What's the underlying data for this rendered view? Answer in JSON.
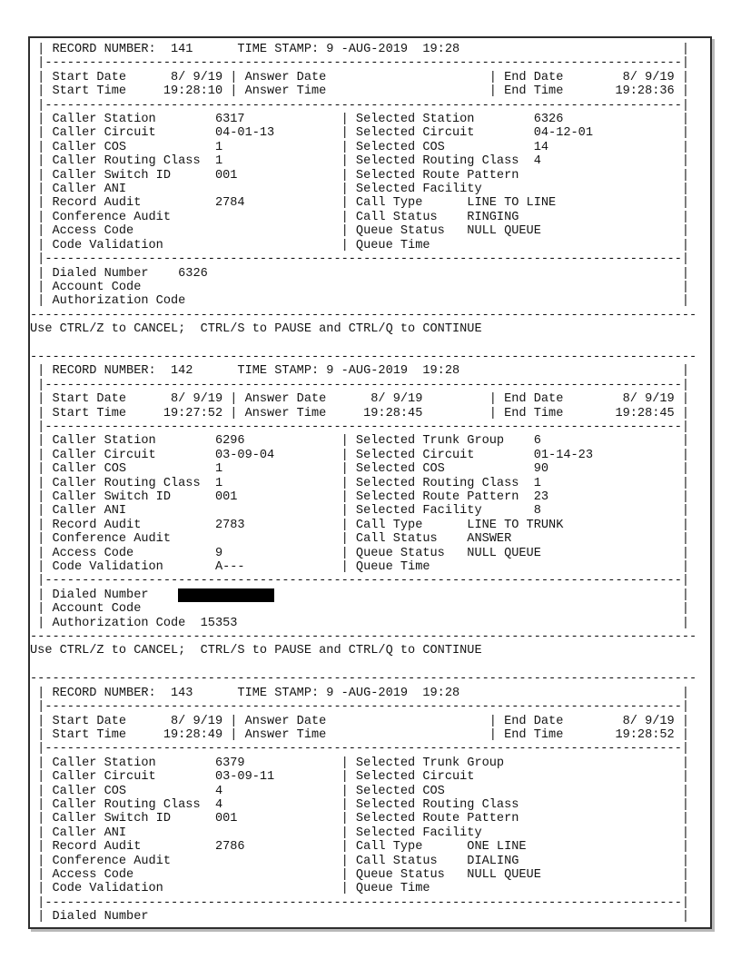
{
  "page": {
    "control_hint": "Use CTRL/Z to CANCEL;  CTRL/S to PAUSE and CTRL/Q to CONTINUE",
    "text_color": "#141414",
    "border_color": "#2e2e2e",
    "redaction_color": "#000000"
  },
  "labels": {
    "record_number": "RECORD NUMBER:",
    "time_stamp": "TIME STAMP:",
    "start_date": "Start Date",
    "start_time": "Start Time",
    "answer_date": "Answer Date",
    "answer_time": "Answer Time",
    "end_date": "End Date",
    "end_time": "End Time",
    "caller_station": "Caller Station",
    "caller_circuit": "Caller Circuit",
    "caller_cos": "Caller COS",
    "caller_routing_class": "Caller Routing Class",
    "caller_switch_id": "Caller Switch ID",
    "caller_ani": "Caller ANI",
    "record_audit": "Record Audit",
    "conference_audit": "Conference Audit",
    "access_code": "Access Code",
    "code_validation": "Code Validation",
    "selected_circuit": "Selected Circuit",
    "selected_cos": "Selected COS",
    "selected_routing_class": "Selected Routing Class",
    "selected_route_pattern": "Selected Route Pattern",
    "selected_facility": "Selected Facility",
    "call_type": "Call Type",
    "call_status": "Call Status",
    "queue_status": "Queue Status",
    "queue_time": "Queue Time",
    "dialed_number": "Dialed Number",
    "account_code": "Account Code",
    "authorization_code": "Authorization Code"
  },
  "records": [
    {
      "record_number": "141",
      "time_stamp": "9 -AUG-2019  19:28",
      "start_date": "8/ 9/19",
      "start_time": "19:28:10",
      "answer_date": "",
      "answer_time": "",
      "end_date": "8/ 9/19",
      "end_time": "19:28:36",
      "caller": {
        "station": "6317",
        "circuit": "04-01-13",
        "cos": "1",
        "routing_class": "1",
        "switch_id": "001",
        "ani": "",
        "record_audit": "2784",
        "conference_audit": "",
        "access_code": "",
        "code_validation": ""
      },
      "selected_first_label": "Selected Station",
      "selected_first_value": "6326",
      "selected": {
        "circuit": "04-12-01",
        "cos": "14",
        "routing_class": "4",
        "route_pattern": "",
        "facility": "",
        "call_type": "LINE TO LINE",
        "call_status": "RINGING",
        "queue_status": "NULL QUEUE",
        "queue_time": ""
      },
      "dialed_number": "6326",
      "dialed_redacted": false,
      "account_code": "",
      "authorization_code": "",
      "truncated": false
    },
    {
      "record_number": "142",
      "time_stamp": "9 -AUG-2019  19:28",
      "start_date": "8/ 9/19",
      "start_time": "19:27:52",
      "answer_date": "8/ 9/19",
      "answer_time": "19:28:45",
      "end_date": "8/ 9/19",
      "end_time": "19:28:45",
      "caller": {
        "station": "6296",
        "circuit": "03-09-04",
        "cos": "1",
        "routing_class": "1",
        "switch_id": "001",
        "ani": "",
        "record_audit": "2783",
        "conference_audit": "",
        "access_code": "9",
        "code_validation": "A---"
      },
      "selected_first_label": "Selected Trunk Group",
      "selected_first_value": "6",
      "selected": {
        "circuit": "01-14-23",
        "cos": "90",
        "routing_class": "1",
        "route_pattern": "23",
        "facility": "8",
        "call_type": "LINE TO TRUNK",
        "call_status": "ANSWER",
        "queue_status": "NULL QUEUE",
        "queue_time": ""
      },
      "dialed_number": "",
      "dialed_redacted": true,
      "account_code": "",
      "authorization_code": "15353",
      "truncated": false
    },
    {
      "record_number": "143",
      "time_stamp": "9 -AUG-2019  19:28",
      "start_date": "8/ 9/19",
      "start_time": "19:28:49",
      "answer_date": "",
      "answer_time": "",
      "end_date": "8/ 9/19",
      "end_time": "19:28:52",
      "caller": {
        "station": "6379",
        "circuit": "03-09-11",
        "cos": "4",
        "routing_class": "4",
        "switch_id": "001",
        "ani": "",
        "record_audit": "2786",
        "conference_audit": "",
        "access_code": "",
        "code_validation": ""
      },
      "selected_first_label": "Selected Trunk Group",
      "selected_first_value": "",
      "selected": {
        "circuit": "",
        "cos": "",
        "routing_class": "",
        "route_pattern": "",
        "facility": "",
        "call_type": "ONE LINE",
        "call_status": "DIALING",
        "queue_status": "NULL QUEUE",
        "queue_time": ""
      },
      "dialed_number": "",
      "dialed_redacted": false,
      "account_code": "",
      "authorization_code": "",
      "truncated": true
    }
  ]
}
